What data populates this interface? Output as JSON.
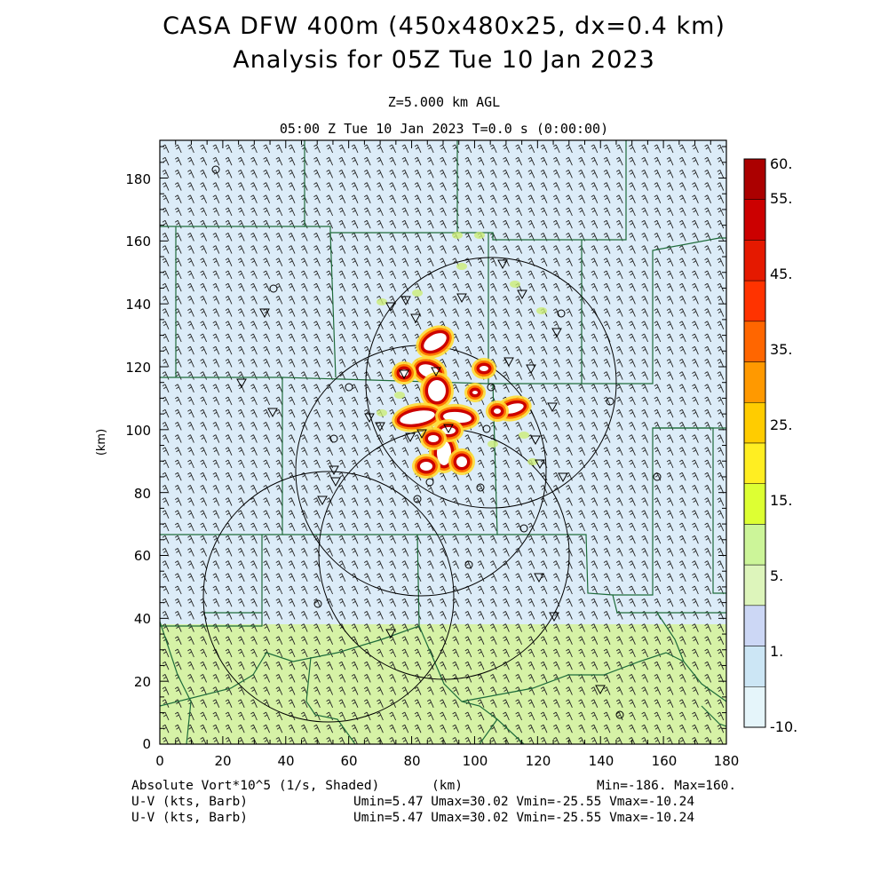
{
  "header": {
    "title_line1": "CASA DFW 400m (450x480x25, dx=0.4 km)",
    "title_line2": "Analysis for 05Z Tue 10 Jan 2023",
    "level": "Z=5.000 km AGL",
    "time": "05:00 Z Tue 10 Jan 2023    T=0.0 s (0:00:00)"
  },
  "axes": {
    "x_ticks": [
      "0",
      "20",
      "40",
      "60",
      "80",
      "100",
      "120",
      "140",
      "160",
      "180"
    ],
    "y_ticks": [
      "0",
      "20",
      "40",
      "60",
      "80",
      "100",
      "120",
      "140",
      "160",
      "180"
    ],
    "x_label": "(km)",
    "y_label": "(km)",
    "x_range": [
      0,
      180
    ],
    "y_range": [
      0,
      192
    ]
  },
  "colorbar": {
    "labels": [
      "60.",
      "55.",
      "45.",
      "35.",
      "25.",
      "15.",
      "5.",
      "1.",
      "-10."
    ],
    "colors": [
      "#ab0000",
      "#cc0000",
      "#e51900",
      "#ff3300",
      "#ff6600",
      "#ff9900",
      "#ffcc00",
      "#ffee22",
      "#ddff33",
      "#ccf599",
      "#ddf5bb",
      "#ccd7f5",
      "#cce6f5",
      "#e5f5fa"
    ]
  },
  "footer": {
    "field_label": "Absolute Vort*10^5 (1/s, Shaded)",
    "axis_unit": "(km)",
    "minmax": "Min=-186. Max=160.",
    "uv_label_1": "U-V (kts, Barb)",
    "uv_stats_1": "Umin=5.47 Umax=30.02 Vmin=-25.55 Vmax=-10.24",
    "uv_label_2": "U-V (kts, Barb)",
    "uv_stats_2": "Umin=5.47 Umax=30.02 Vmin=-25.55 Vmax=-10.24"
  },
  "map": {
    "background_color": "#dcecf8",
    "lower_band_color": "#d6f2a6",
    "lower_band_top_km": 38,
    "county_line_color": "#1e6b3a",
    "radar_range_ring_color": "#000000",
    "vort_core_color": "#ffffff"
  }
}
